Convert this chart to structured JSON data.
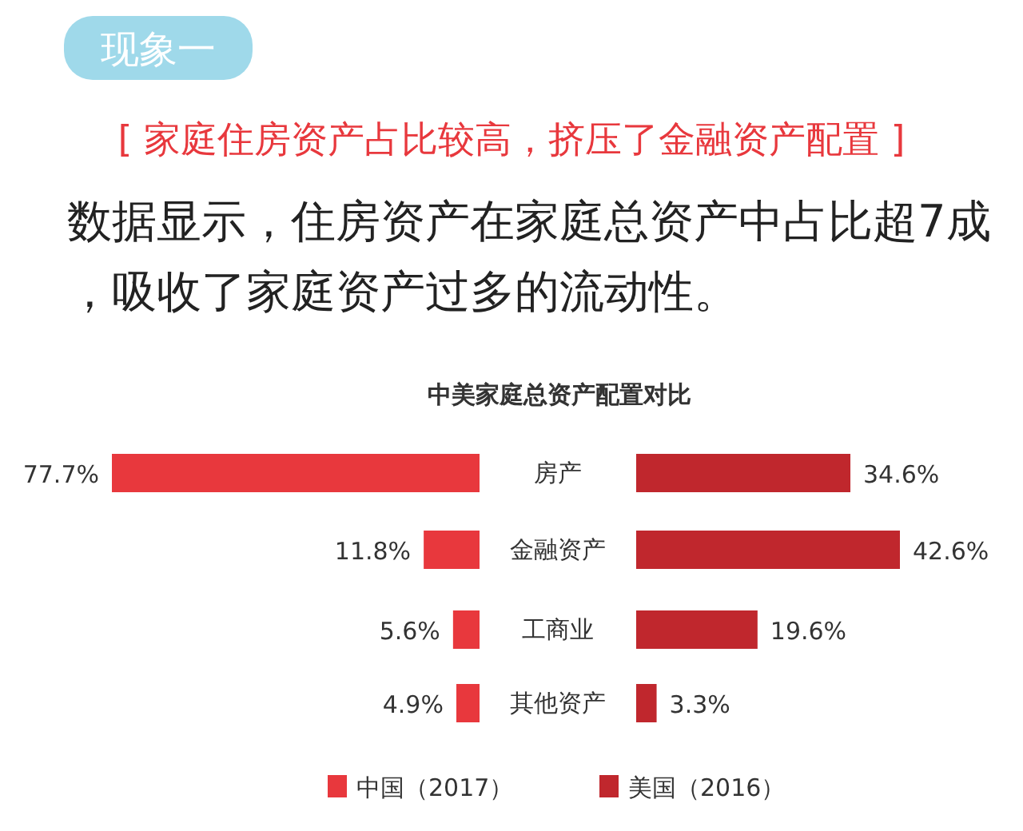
{
  "chart_data": [
    {
      "type": "bar",
      "orientation": "horizontal",
      "title": "中美家庭总资产配置对比",
      "annotations": [
        "现象一",
        "[ 家庭住房资产占比较高，挤压了金融资产配置 ]",
        "数据显示，住房资产在家庭总资产中占比超7成，吸收了家庭资产过多的流动性。"
      ],
      "categories": [
        "房产",
        "金融资产",
        "工商业",
        "其他资产"
      ],
      "series": [
        {
          "name": "中国（2017）",
          "color": "#e8383d",
          "values": [
            77.7,
            11.8,
            5.6,
            4.9
          ],
          "value_labels": [
            "77.7%",
            "11.8%",
            "5.6%",
            "4.9%"
          ]
        }
      ],
      "legend": "bottom"
    },
    {
      "type": "bar",
      "orientation": "horizontal",
      "categories": [
        null,
        null,
        null,
        null
      ],
      "series": [
        {
          "name": "美国（2016）",
          "color": "#c0272d",
          "values": [
            34.6,
            42.6,
            19.6,
            3.3
          ],
          "value_labels": [
            "34.6%",
            "42.6%",
            "19.6%",
            "3.3%"
          ]
        }
      ],
      "legend": "bottom"
    }
  ]
}
